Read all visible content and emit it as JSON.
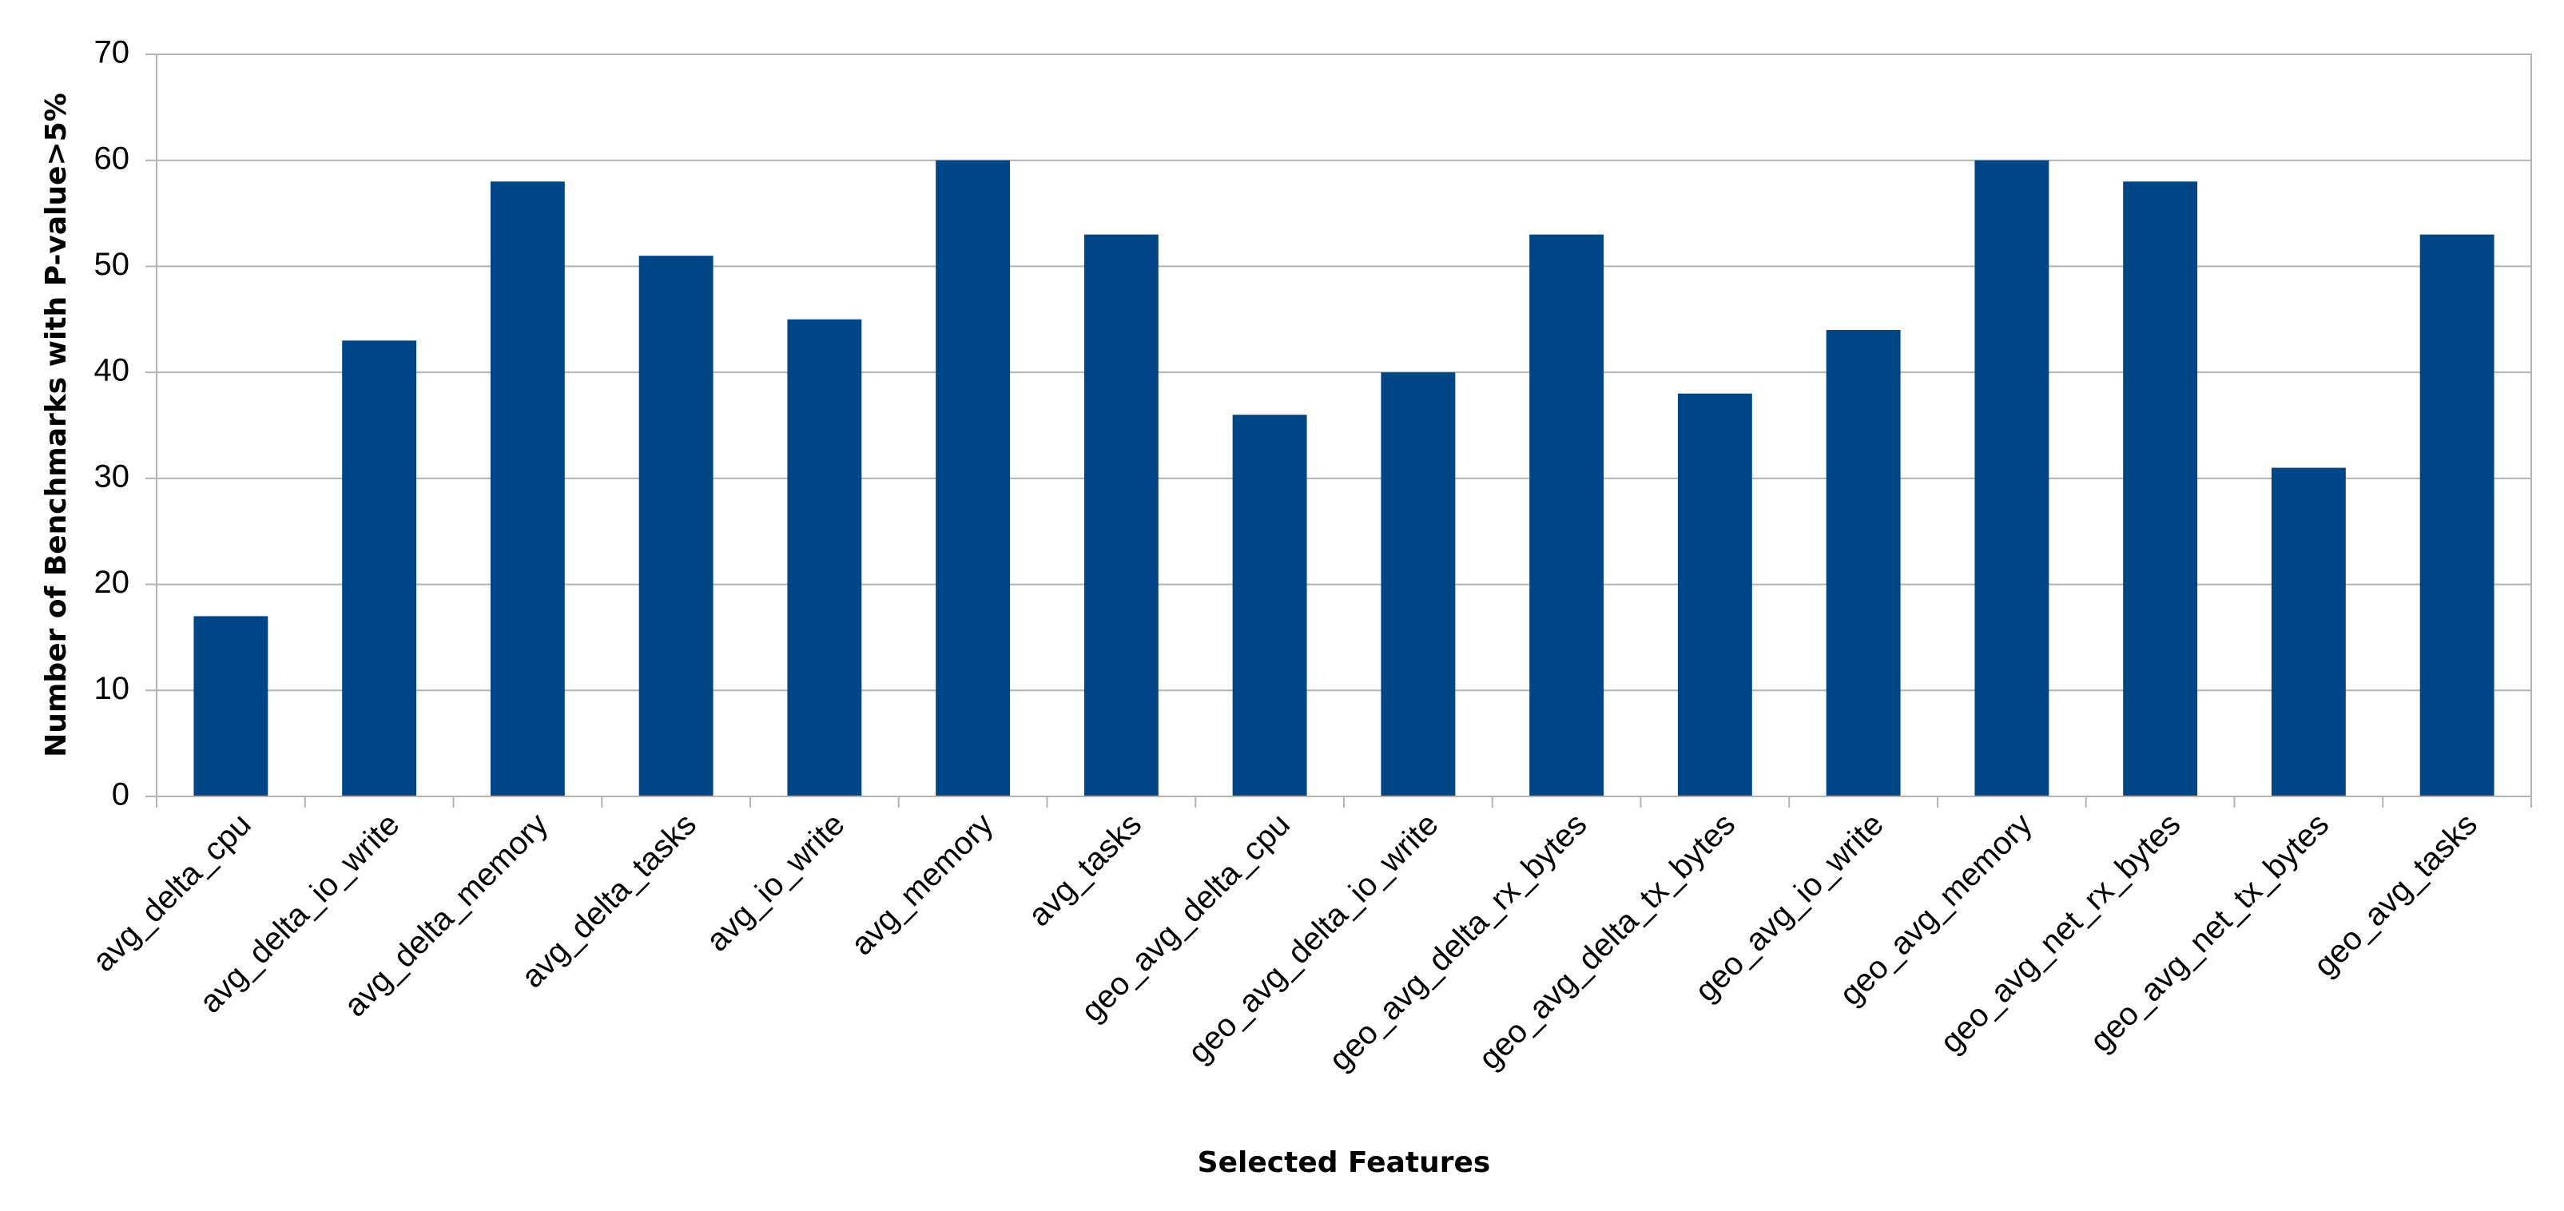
{
  "chart_data": {
    "type": "bar",
    "x_label": "Selected Features",
    "y_label": "Number of Benchmarks  with P-value>5%",
    "categories": [
      "avg_delta_cpu",
      "avg_delta_io_write",
      "avg_delta_memory",
      "avg_delta_tasks",
      "avg_io_write",
      "avg_memory",
      "avg_tasks",
      "geo_avg_delta_cpu",
      "geo_avg_delta_io_write",
      "geo_avg_delta_rx_bytes",
      "geo_avg_delta_tx_bytes",
      "geo_avg_io_write",
      "geo_avg_memory",
      "geo_avg_net_rx_bytes",
      "geo_avg_net_tx_bytes",
      "geo_avg_tasks"
    ],
    "values": [
      17,
      43,
      58,
      51,
      45,
      60,
      53,
      36,
      40,
      53,
      38,
      44,
      60,
      58,
      31,
      53
    ],
    "color": "#004586",
    "ylim": [
      0,
      70
    ],
    "yticks": [
      0,
      10,
      20,
      30,
      40,
      50,
      60,
      70
    ],
    "grid": true
  }
}
